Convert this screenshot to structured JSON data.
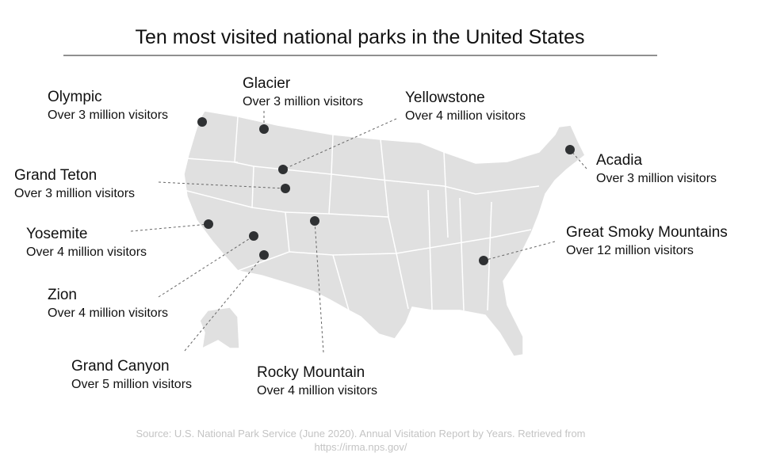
{
  "title": "Ten most visited national parks in the United States",
  "parks": [
    {
      "name": "Olympic",
      "visitors": "Over 3 million visitors"
    },
    {
      "name": "Glacier",
      "visitors": "Over 3 million visitors"
    },
    {
      "name": "Yellowstone",
      "visitors": "Over 4 million visitors"
    },
    {
      "name": "Grand Teton",
      "visitors": "Over 3 million visitors"
    },
    {
      "name": "Yosemite",
      "visitors": "Over 4 million visitors"
    },
    {
      "name": "Zion",
      "visitors": "Over 4 million visitors"
    },
    {
      "name": "Grand Canyon",
      "visitors": "Over 5 million visitors"
    },
    {
      "name": "Rocky Mountain",
      "visitors": "Over 4 million visitors"
    },
    {
      "name": "Great Smoky Mountains",
      "visitors": "Over 12 million visitors"
    },
    {
      "name": "Acadia",
      "visitors": "Over 3 million visitors"
    }
  ],
  "source": "Source: U.S. National Park Service (June 2020). Annual Visitation Report by Years. Retrieved from https://irma.nps.gov/"
}
